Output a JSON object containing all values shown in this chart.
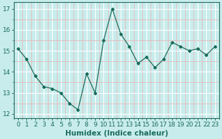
{
  "x": [
    0,
    1,
    2,
    3,
    4,
    5,
    6,
    7,
    8,
    9,
    10,
    11,
    12,
    13,
    14,
    15,
    16,
    17,
    18,
    19,
    20,
    21,
    22,
    23
  ],
  "y": [
    15.1,
    14.6,
    13.8,
    13.3,
    13.2,
    13.0,
    12.5,
    12.2,
    13.9,
    13.0,
    15.5,
    17.0,
    15.8,
    15.2,
    14.4,
    14.7,
    14.2,
    14.6,
    15.4,
    15.2,
    15.0,
    15.1,
    14.8,
    15.2
  ],
  "xlabel": "Humidex (Indice chaleur)",
  "ylim": [
    11.8,
    17.3
  ],
  "xlim": [
    -0.5,
    23.5
  ],
  "yticks": [
    12,
    13,
    14,
    15,
    16,
    17
  ],
  "xticks": [
    0,
    1,
    2,
    3,
    4,
    5,
    6,
    7,
    8,
    9,
    10,
    11,
    12,
    13,
    14,
    15,
    16,
    17,
    18,
    19,
    20,
    21,
    22,
    23
  ],
  "line_color": "#1a6b5a",
  "marker": "D",
  "marker_size": 2.0,
  "bg_color": "#c8ecec",
  "grid_major_color": "#ffffff",
  "grid_minor_color": "#e8b8b8",
  "tick_label_color": "#1a6b5a",
  "xlabel_color": "#1a6b5a",
  "xlabel_fontsize": 7.5,
  "tick_fontsize": 6.5,
  "spine_color": "#1a6b5a"
}
